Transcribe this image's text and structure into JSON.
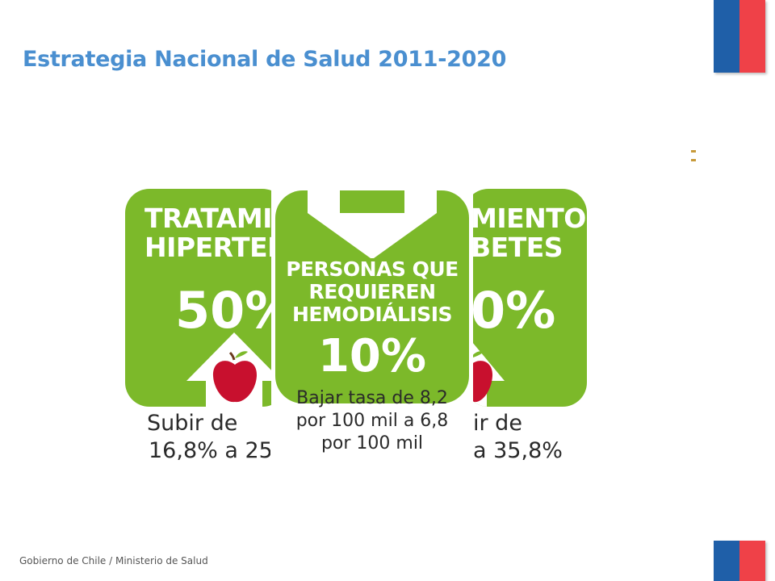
{
  "slide": {
    "title": "Estrategia Nacional de Salud 2011-2020",
    "footer": "Gobierno de Chile / Ministerio de Salud"
  },
  "cards": {
    "left": {
      "title_line1": "TRATAMIE",
      "title_line2": "HIPERTENS",
      "percent": "50%",
      "desc_line1": "Subir de",
      "desc_line2": "16,8% a 25"
    },
    "center": {
      "title_line1": "PERSONAS QUE",
      "title_line2": "REQUIEREN",
      "title_line3": "HEMODIÁLISIS",
      "percent": "10%",
      "desc_line1": "Bajar tasa de 8,2",
      "desc_line2": "por 100 mil a 6,8",
      "desc_line3": "por 100 mil"
    },
    "right": {
      "title_line1": "MIENTO",
      "title_line2": "BETES",
      "percent": "0%",
      "desc_line1": "ir de",
      "desc_line2": "a 35,8%"
    }
  },
  "icons": {
    "apple": "apple-icon",
    "arrow_up": "up-arrow-icon",
    "arrow_down": "down-arrow-icon",
    "flag": "chile-flag-icon"
  },
  "colors": {
    "title_blue": "#4a8fd0",
    "card_green": "#7cb92a",
    "apple_red": "#c8102e",
    "flag_blue": "#1f5fa8",
    "flag_red": "#ef4148"
  }
}
